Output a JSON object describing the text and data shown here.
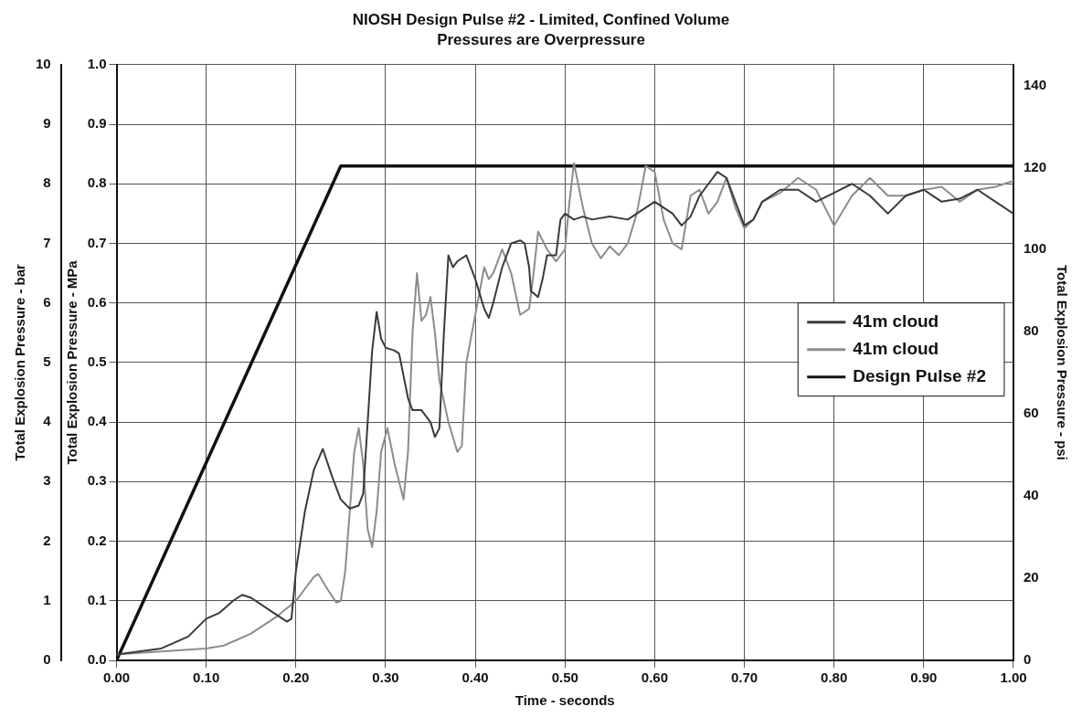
{
  "chart_data": {
    "type": "line",
    "title": "NIOSH Design Pulse #2 - Limited, Confined Volume",
    "subtitle": "Pressures are Overpressure",
    "xlabel": "Time - seconds",
    "ylabel": "Total Explosion Pressure - MPa",
    "y2label": "Total Explosion Pressure - psi",
    "y3label": "Total Explosion Pressure - bar",
    "xlim": [
      0,
      1
    ],
    "xticks": [
      {
        "value": 0,
        "label": "0.00"
      },
      {
        "value": 0.1,
        "label": "0.10"
      },
      {
        "value": 0.2,
        "label": "0.20"
      },
      {
        "value": 0.3,
        "label": "0.30"
      },
      {
        "value": 0.4,
        "label": "0.40"
      },
      {
        "value": 0.5,
        "label": "0.50"
      },
      {
        "value": 0.6,
        "label": "0.60"
      },
      {
        "value": 0.7,
        "label": "0.70"
      },
      {
        "value": 0.8,
        "label": "0.80"
      },
      {
        "value": 0.9,
        "label": "0.90"
      },
      {
        "value": 1,
        "label": "1.00"
      }
    ],
    "ylim": [
      0,
      1
    ],
    "yticks": [
      {
        "value": 0,
        "label": "0.0"
      },
      0.1,
      0.2,
      0.3,
      0.4,
      0.5,
      0.6,
      0.7,
      0.8,
      0.9,
      {
        "value": 1,
        "label": "1.0"
      }
    ],
    "y2lim": [
      0,
      145.04
    ],
    "y2ticks": [
      0,
      20,
      40,
      60,
      80,
      100,
      120,
      140
    ],
    "y3lim": [
      0,
      10
    ],
    "y3ticks": [
      0,
      1,
      2,
      3,
      4,
      5,
      6,
      7,
      8,
      9,
      10
    ],
    "grid": true,
    "legend": "right",
    "marker": "none",
    "line_style": "solid",
    "series": [
      {
        "name": "41m cloud",
        "color": "#3a3a3a",
        "x": [
          0,
          0.05,
          0.08,
          0.1,
          0.115,
          0.13,
          0.14,
          0.15,
          0.17,
          0.19,
          0.195,
          0.2,
          0.21,
          0.22,
          0.23,
          0.24,
          0.25,
          0.26,
          0.27,
          0.275,
          0.28,
          0.285,
          0.29,
          0.295,
          0.3,
          0.31,
          0.315,
          0.325,
          0.33,
          0.34,
          0.35,
          0.355,
          0.36,
          0.365,
          0.37,
          0.375,
          0.38,
          0.39,
          0.4,
          0.41,
          0.415,
          0.42,
          0.43,
          0.44,
          0.45,
          0.455,
          0.46,
          0.462,
          0.47,
          0.475,
          0.48,
          0.49,
          0.495,
          0.5,
          0.51,
          0.52,
          0.53,
          0.55,
          0.57,
          0.58,
          0.6,
          0.62,
          0.63,
          0.64,
          0.65,
          0.66,
          0.67,
          0.68,
          0.69,
          0.7,
          0.71,
          0.72,
          0.74,
          0.76,
          0.78,
          0.8,
          0.82,
          0.84,
          0.86,
          0.88,
          0.9,
          0.92,
          0.94,
          0.96,
          0.98,
          1
        ],
        "values": [
          0.01,
          0.02,
          0.04,
          0.07,
          0.08,
          0.1,
          0.11,
          0.105,
          0.085,
          0.065,
          0.07,
          0.15,
          0.25,
          0.32,
          0.355,
          0.31,
          0.27,
          0.255,
          0.26,
          0.28,
          0.4,
          0.52,
          0.585,
          0.54,
          0.525,
          0.52,
          0.515,
          0.44,
          0.42,
          0.42,
          0.4,
          0.375,
          0.39,
          0.55,
          0.68,
          0.66,
          0.67,
          0.68,
          0.64,
          0.59,
          0.575,
          0.6,
          0.66,
          0.7,
          0.705,
          0.7,
          0.66,
          0.62,
          0.61,
          0.64,
          0.68,
          0.68,
          0.74,
          0.75,
          0.74,
          0.745,
          0.74,
          0.745,
          0.74,
          0.75,
          0.77,
          0.75,
          0.73,
          0.745,
          0.78,
          0.8,
          0.82,
          0.81,
          0.77,
          0.73,
          0.74,
          0.77,
          0.79,
          0.79,
          0.77,
          0.785,
          0.8,
          0.78,
          0.75,
          0.78,
          0.79,
          0.77,
          0.775,
          0.79,
          0.77,
          0.75
        ]
      },
      {
        "name": "41m cloud",
        "color": "#8c8c8c",
        "x": [
          0,
          0.05,
          0.1,
          0.12,
          0.15,
          0.18,
          0.2,
          0.21,
          0.22,
          0.225,
          0.235,
          0.245,
          0.25,
          0.255,
          0.26,
          0.265,
          0.27,
          0.275,
          0.28,
          0.285,
          0.29,
          0.295,
          0.302,
          0.31,
          0.315,
          0.32,
          0.325,
          0.33,
          0.335,
          0.34,
          0.345,
          0.35,
          0.355,
          0.36,
          0.37,
          0.38,
          0.385,
          0.39,
          0.4,
          0.41,
          0.415,
          0.42,
          0.43,
          0.44,
          0.45,
          0.46,
          0.465,
          0.47,
          0.48,
          0.49,
          0.5,
          0.505,
          0.51,
          0.52,
          0.53,
          0.54,
          0.55,
          0.56,
          0.57,
          0.58,
          0.59,
          0.6,
          0.61,
          0.62,
          0.63,
          0.64,
          0.65,
          0.66,
          0.67,
          0.68,
          0.69,
          0.7,
          0.71,
          0.72,
          0.74,
          0.76,
          0.78,
          0.8,
          0.82,
          0.84,
          0.86,
          0.88,
          0.9,
          0.92,
          0.94,
          0.96,
          0.98,
          1
        ],
        "values": [
          0.01,
          0.015,
          0.02,
          0.025,
          0.045,
          0.075,
          0.1,
          0.12,
          0.14,
          0.145,
          0.12,
          0.097,
          0.1,
          0.15,
          0.25,
          0.35,
          0.39,
          0.33,
          0.22,
          0.19,
          0.25,
          0.35,
          0.39,
          0.33,
          0.3,
          0.27,
          0.35,
          0.55,
          0.65,
          0.57,
          0.58,
          0.61,
          0.55,
          0.47,
          0.4,
          0.35,
          0.36,
          0.5,
          0.58,
          0.66,
          0.64,
          0.65,
          0.69,
          0.65,
          0.58,
          0.59,
          0.65,
          0.72,
          0.69,
          0.67,
          0.69,
          0.77,
          0.835,
          0.76,
          0.7,
          0.675,
          0.695,
          0.68,
          0.7,
          0.75,
          0.83,
          0.82,
          0.74,
          0.7,
          0.69,
          0.78,
          0.79,
          0.75,
          0.77,
          0.81,
          0.76,
          0.725,
          0.74,
          0.77,
          0.785,
          0.81,
          0.79,
          0.73,
          0.78,
          0.81,
          0.78,
          0.78,
          0.79,
          0.795,
          0.77,
          0.79,
          0.795,
          0.805
        ]
      },
      {
        "name": "Design Pulse #2",
        "color": "#111111",
        "x": [
          0,
          0.25,
          1
        ],
        "values": [
          0,
          0.83,
          0.83
        ]
      }
    ]
  }
}
